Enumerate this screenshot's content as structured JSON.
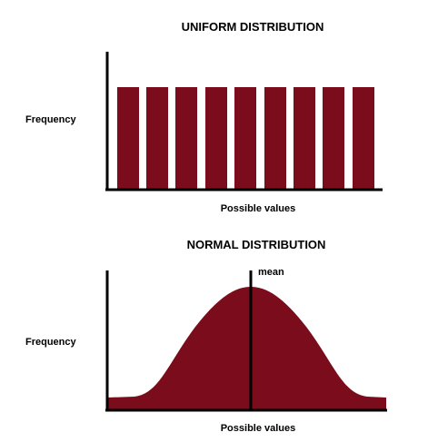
{
  "uniform": {
    "title": "UNIFORM DISTRIBUTION",
    "y_label": "Frequency",
    "x_label": "Possible values"
  },
  "normal": {
    "title": "NORMAL DISTRIBUTION",
    "y_label": "Frequency",
    "x_label": "Possible values",
    "mean_label": "mean"
  }
}
